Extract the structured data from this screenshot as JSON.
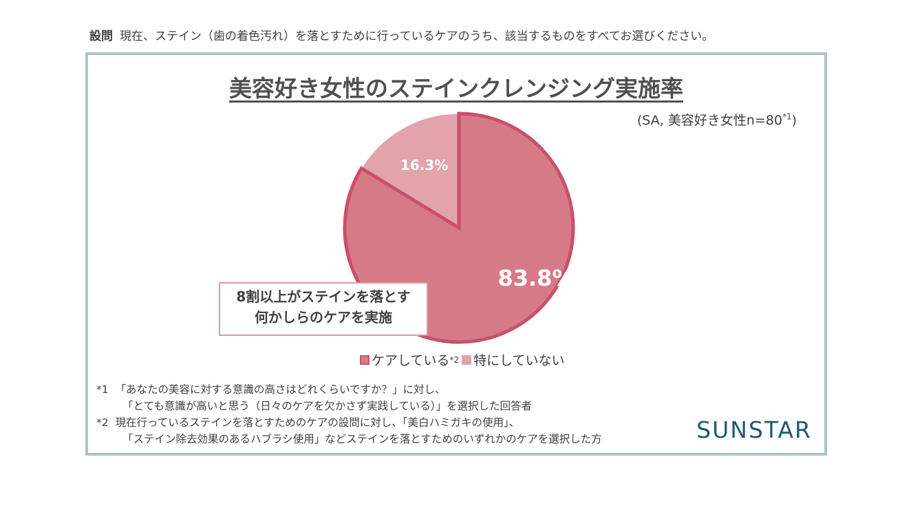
{
  "question": {
    "label": "設問",
    "text": "現在、ステイン（歯の着色汚れ）を落とすために行っているケアのうち、該当するものをすべてお選びください。"
  },
  "chart_data": {
    "type": "pie",
    "title": "美容好き女性のステインクレンジング実施率",
    "subtitle": "(SA, 美容好き女性n=80",
    "subtitle_note": "*1",
    "subtitle_close": ")",
    "slices": [
      {
        "name": "ケアしている",
        "note": "*2",
        "value": 83.8,
        "label": "83.8%",
        "color": "#d67a87",
        "border": "#c9506a"
      },
      {
        "name": "特にしていない",
        "value": 16.3,
        "label": "16.3%",
        "color": "#e3a3ab"
      }
    ],
    "legend_placement": "bottom",
    "annotation": [
      "8割以上がステインを落とす",
      "何かしらのケアを実施"
    ]
  },
  "footnotes": [
    {
      "mark": "*1",
      "lines": [
        "「あなたの美容に対する意識の高さはどれくらいですか？」に対し、",
        "「とても意識が高いと思う（日々のケアを欠かさず実践している）」を選択した回答者"
      ]
    },
    {
      "mark": "*2",
      "lines": [
        "現在行っているステインを落とすためのケアの設問に対し、「美白ハミガキの使用」、",
        "「ステイン除去効果のあるハブラシ使用」などステインを落とすためのいずれかのケアを選択した方"
      ]
    }
  ],
  "logo": "SUNSTAR"
}
